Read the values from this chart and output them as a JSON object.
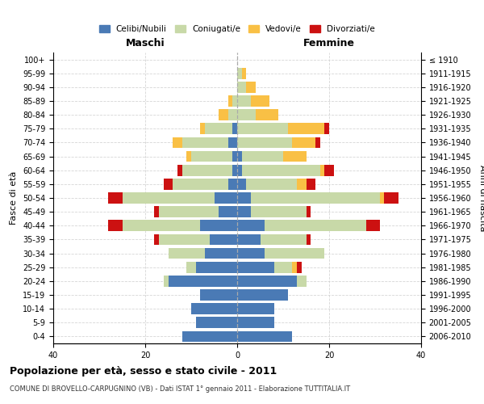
{
  "age_groups": [
    "0-4",
    "5-9",
    "10-14",
    "15-19",
    "20-24",
    "25-29",
    "30-34",
    "35-39",
    "40-44",
    "45-49",
    "50-54",
    "55-59",
    "60-64",
    "65-69",
    "70-74",
    "75-79",
    "80-84",
    "85-89",
    "90-94",
    "95-99",
    "100+"
  ],
  "birth_years": [
    "2006-2010",
    "2001-2005",
    "1996-2000",
    "1991-1995",
    "1986-1990",
    "1981-1985",
    "1976-1980",
    "1971-1975",
    "1966-1970",
    "1961-1965",
    "1956-1960",
    "1951-1955",
    "1946-1950",
    "1941-1945",
    "1936-1940",
    "1931-1935",
    "1926-1930",
    "1921-1925",
    "1916-1920",
    "1911-1915",
    "≤ 1910"
  ],
  "colors": {
    "celibi": "#4a7ab5",
    "coniugati": "#c8d9a8",
    "vedovi": "#f9c045",
    "divorziati": "#cc1111"
  },
  "maschi": {
    "celibi": [
      12,
      9,
      10,
      8,
      15,
      9,
      7,
      6,
      8,
      4,
      5,
      2,
      1,
      1,
      2,
      1,
      0,
      0,
      0,
      0,
      0
    ],
    "coniugati": [
      0,
      0,
      0,
      0,
      1,
      2,
      8,
      11,
      17,
      13,
      20,
      12,
      11,
      9,
      10,
      6,
      2,
      1,
      0,
      0,
      0
    ],
    "vedovi": [
      0,
      0,
      0,
      0,
      0,
      0,
      0,
      0,
      0,
      0,
      0,
      0,
      0,
      1,
      2,
      1,
      2,
      1,
      0,
      0,
      0
    ],
    "divorziati": [
      0,
      0,
      0,
      0,
      0,
      0,
      0,
      1,
      3,
      1,
      3,
      2,
      1,
      0,
      0,
      0,
      0,
      0,
      0,
      0,
      0
    ]
  },
  "femmine": {
    "celibi": [
      12,
      8,
      8,
      11,
      13,
      8,
      6,
      5,
      6,
      3,
      3,
      2,
      1,
      1,
      0,
      0,
      0,
      0,
      0,
      0,
      0
    ],
    "coniugati": [
      0,
      0,
      0,
      0,
      2,
      4,
      13,
      10,
      22,
      12,
      28,
      11,
      17,
      9,
      12,
      11,
      4,
      3,
      2,
      1,
      0
    ],
    "vedovi": [
      0,
      0,
      0,
      0,
      0,
      1,
      0,
      0,
      0,
      0,
      1,
      2,
      1,
      5,
      5,
      8,
      5,
      4,
      2,
      1,
      0
    ],
    "divorziati": [
      0,
      0,
      0,
      0,
      0,
      1,
      0,
      1,
      3,
      1,
      3,
      2,
      2,
      0,
      1,
      1,
      0,
      0,
      0,
      0,
      0
    ]
  },
  "xlim": 40,
  "title": "Popolazione per età, sesso e stato civile - 2011",
  "subtitle": "COMUNE DI BROVELLO-CARPUGNINO (VB) - Dati ISTAT 1° gennaio 2011 - Elaborazione TUTTITALIA.IT",
  "ylabel": "Fasce di età",
  "ylabel_right": "Anni di nascita",
  "label_maschi": "Maschi",
  "label_femmine": "Femmine",
  "legend_labels": [
    "Celibi/Nubili",
    "Coniugati/e",
    "Vedovi/e",
    "Divorziati/e"
  ]
}
